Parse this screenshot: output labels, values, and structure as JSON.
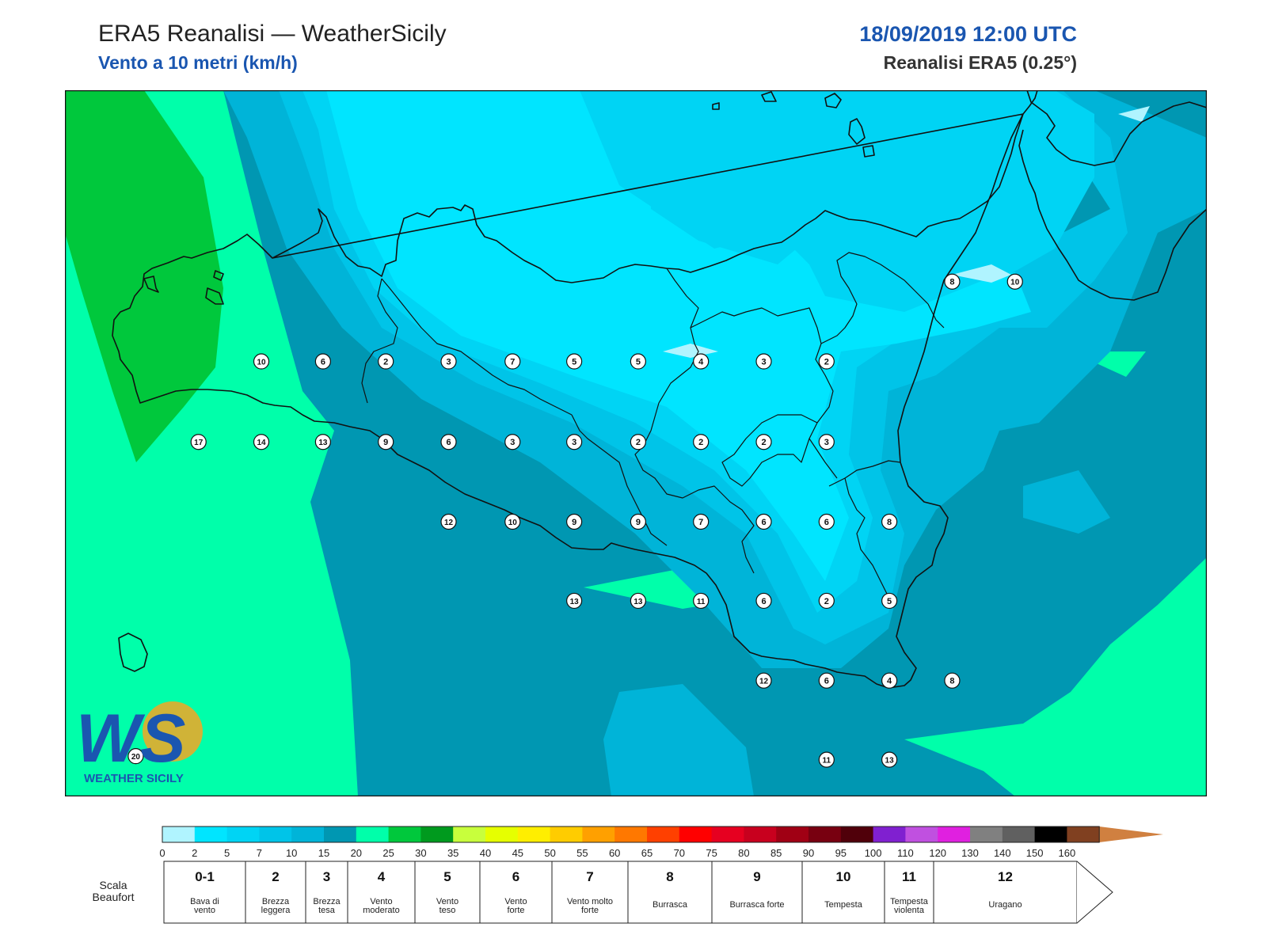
{
  "header": {
    "title": "ERA5 Reanalisi — WeatherSicily",
    "subtitle": "Vento a 10 metri (km/h)",
    "datetime": "18/09/2019 12:00 UTC",
    "source": "Reanalisi ERA5 (0.25°)"
  },
  "logo": {
    "letters": "WS",
    "text": "WEATHER SICILY"
  },
  "colors": {
    "sea_dark": "#0097b2",
    "sea_mid": "#00b4d8",
    "land_light": "#00d4f4",
    "land_lightest": "#00e5ff",
    "band_15_20": "#00ffaa",
    "band_20_25": "#00c83c",
    "coast": "#111111"
  },
  "wind_stations": [
    {
      "value": "10",
      "x": 17.2,
      "y": 38.4
    },
    {
      "value": "6",
      "x": 22.6,
      "y": 38.4
    },
    {
      "value": "2",
      "x": 28.1,
      "y": 38.4
    },
    {
      "value": "3",
      "x": 33.6,
      "y": 38.4
    },
    {
      "value": "7",
      "x": 39.2,
      "y": 38.4
    },
    {
      "value": "5",
      "x": 44.6,
      "y": 38.4
    },
    {
      "value": "5",
      "x": 50.2,
      "y": 38.4
    },
    {
      "value": "4",
      "x": 55.7,
      "y": 38.4
    },
    {
      "value": "3",
      "x": 61.2,
      "y": 38.4
    },
    {
      "value": "2",
      "x": 66.7,
      "y": 38.4
    },
    {
      "value": "17",
      "x": 11.7,
      "y": 49.8
    },
    {
      "value": "14",
      "x": 17.2,
      "y": 49.8
    },
    {
      "value": "13",
      "x": 22.6,
      "y": 49.8
    },
    {
      "value": "9",
      "x": 28.1,
      "y": 49.8
    },
    {
      "value": "6",
      "x": 33.6,
      "y": 49.8
    },
    {
      "value": "3",
      "x": 39.2,
      "y": 49.8
    },
    {
      "value": "3",
      "x": 44.6,
      "y": 49.8
    },
    {
      "value": "2",
      "x": 50.2,
      "y": 49.8
    },
    {
      "value": "2",
      "x": 55.7,
      "y": 49.8
    },
    {
      "value": "2",
      "x": 61.2,
      "y": 49.8
    },
    {
      "value": "3",
      "x": 66.7,
      "y": 49.8
    },
    {
      "value": "12",
      "x": 33.6,
      "y": 61.1
    },
    {
      "value": "10",
      "x": 39.2,
      "y": 61.1
    },
    {
      "value": "9",
      "x": 44.6,
      "y": 61.1
    },
    {
      "value": "9",
      "x": 50.2,
      "y": 61.1
    },
    {
      "value": "7",
      "x": 55.7,
      "y": 61.1
    },
    {
      "value": "6",
      "x": 61.2,
      "y": 61.1
    },
    {
      "value": "6",
      "x": 66.7,
      "y": 61.1
    },
    {
      "value": "8",
      "x": 72.2,
      "y": 61.1
    },
    {
      "value": "13",
      "x": 44.6,
      "y": 72.3
    },
    {
      "value": "13",
      "x": 50.2,
      "y": 72.3
    },
    {
      "value": "11",
      "x": 55.7,
      "y": 72.3
    },
    {
      "value": "6",
      "x": 61.2,
      "y": 72.3
    },
    {
      "value": "2",
      "x": 66.7,
      "y": 72.3
    },
    {
      "value": "5",
      "x": 72.2,
      "y": 72.3
    },
    {
      "value": "12",
      "x": 61.2,
      "y": 83.6
    },
    {
      "value": "6",
      "x": 66.7,
      "y": 83.6
    },
    {
      "value": "4",
      "x": 72.2,
      "y": 83.6
    },
    {
      "value": "8",
      "x": 77.7,
      "y": 83.6
    },
    {
      "value": "11",
      "x": 66.7,
      "y": 94.8
    },
    {
      "value": "13",
      "x": 72.2,
      "y": 94.8
    },
    {
      "value": "8",
      "x": 77.7,
      "y": 27.1
    },
    {
      "value": "10",
      "x": 83.2,
      "y": 27.1
    },
    {
      "value": "20",
      "x": 6.2,
      "y": 94.3
    }
  ],
  "colorbar": {
    "ticks": [
      "0",
      "2",
      "5",
      "7",
      "10",
      "15",
      "20",
      "25",
      "30",
      "35",
      "40",
      "45",
      "50",
      "55",
      "60",
      "65",
      "70",
      "75",
      "80",
      "85",
      "90",
      "95",
      "100",
      "110",
      "120",
      "130",
      "140",
      "150",
      "160"
    ],
    "colors": [
      "#b0f4ff",
      "#00e5ff",
      "#00d4f4",
      "#00c4e8",
      "#00b4d8",
      "#0097b2",
      "#00ffaa",
      "#00c83c",
      "#009a1e",
      "#c8ff3c",
      "#e6ff00",
      "#ffee00",
      "#ffcc00",
      "#ffa000",
      "#ff7800",
      "#ff4000",
      "#ff0000",
      "#e60020",
      "#c8001e",
      "#a00014",
      "#780010",
      "#50000a",
      "#8020d0",
      "#c050e0",
      "#e020e0",
      "#808080",
      "#606060",
      "#000000",
      "#804020",
      "#d08040"
    ]
  },
  "beaufort": {
    "label": "Scala Beaufort",
    "entries": [
      {
        "num": "0-1",
        "desc": "Bava di vento"
      },
      {
        "num": "2",
        "desc": "Brezza leggera"
      },
      {
        "num": "3",
        "desc": "Brezza tesa"
      },
      {
        "num": "4",
        "desc": "Vento moderato"
      },
      {
        "num": "5",
        "desc": "Vento teso"
      },
      {
        "num": "6",
        "desc": "Vento forte"
      },
      {
        "num": "7",
        "desc": "Vento molto forte"
      },
      {
        "num": "8",
        "desc": "Burrasca"
      },
      {
        "num": "9",
        "desc": "Burrasca forte"
      },
      {
        "num": "10",
        "desc": "Tempesta"
      },
      {
        "num": "11",
        "desc": "Tempesta violenta"
      },
      {
        "num": "12",
        "desc": "Uragano"
      }
    ]
  }
}
